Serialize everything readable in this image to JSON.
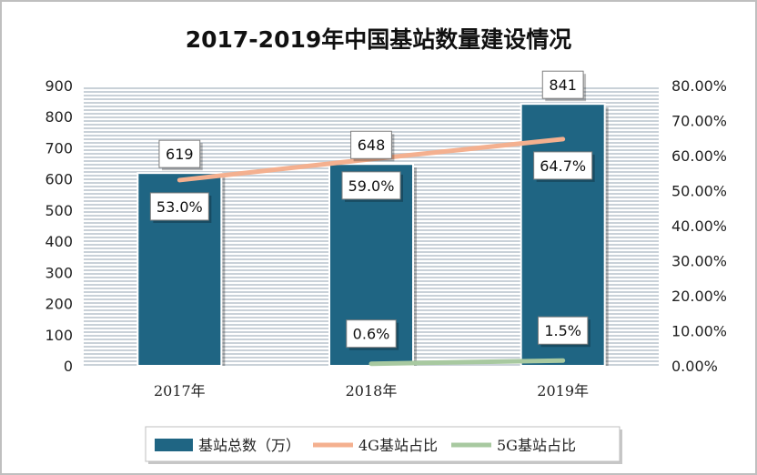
{
  "chart_data": {
    "type": "bar",
    "title": "2017-2019年中国基站数量建设情况",
    "categories": [
      "2017年",
      "2018年",
      "2019年"
    ],
    "y_left": {
      "min": 0,
      "max": 900,
      "step": 100,
      "ticks": [
        "0",
        "100",
        "200",
        "300",
        "400",
        "500",
        "600",
        "700",
        "800",
        "900"
      ]
    },
    "y_right": {
      "min": 0,
      "max": 0.8,
      "step": 0.1,
      "ticks": [
        "0.00%",
        "10.00%",
        "20.00%",
        "30.00%",
        "40.00%",
        "50.00%",
        "60.00%",
        "70.00%",
        "80.00%"
      ]
    },
    "series": [
      {
        "name": "基站总数（万）",
        "kind": "bar",
        "axis": "left",
        "color": "#1f6583",
        "values": [
          619,
          648,
          841
        ],
        "labels": [
          "619",
          "648",
          "841"
        ]
      },
      {
        "name": "4G基站占比",
        "kind": "line",
        "axis": "right",
        "color": "#f4b08f",
        "values": [
          0.53,
          0.59,
          0.647
        ],
        "labels": [
          "53.0%",
          "59.0%",
          "64.7%"
        ]
      },
      {
        "name": "5G基站占比",
        "kind": "line",
        "axis": "right",
        "color": "#a8c9a0",
        "values": [
          null,
          0.006,
          0.015
        ],
        "labels": [
          "",
          "0.6%",
          "1.5%"
        ]
      }
    ],
    "grid": true,
    "legend_position": "bottom"
  }
}
